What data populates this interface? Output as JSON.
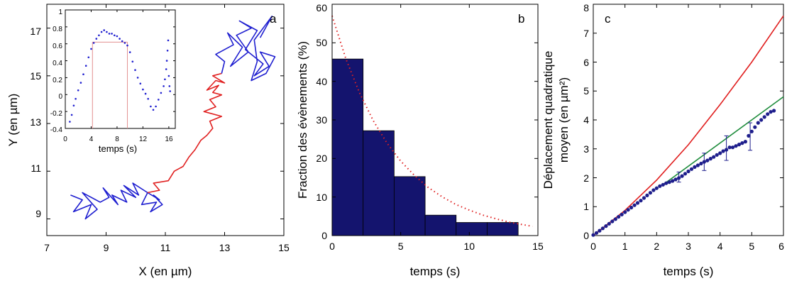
{
  "chart_data": [
    {
      "type": "line",
      "panel_label": "a",
      "xlabel": "X (en µm)",
      "ylabel": "Y (en µm)",
      "xlim": [
        7,
        15
      ],
      "ylim": [
        8.3,
        18
      ],
      "xticks": [
        "7",
        "9",
        "11",
        "13",
        "15"
      ],
      "yticks": [
        "9",
        "11",
        "13",
        "15",
        "17"
      ],
      "colors": {
        "blue": "#1f1fd0",
        "red": "#e02020"
      },
      "series": [
        {
          "color": "blue",
          "x": [
            7.8,
            8.2,
            7.9,
            8.5,
            8.3,
            8.7,
            8.2,
            8.8,
            9.1,
            8.9,
            9.4,
            9.2,
            9.7,
            9.5,
            10.0,
            9.6,
            10.1,
            9.9,
            10.4,
            10.2,
            10.7,
            10.5,
            10.9,
            10.6,
            10.8,
            10.4
          ],
          "y": [
            10.0,
            9.8,
            9.3,
            9.6,
            9.0,
            9.4,
            10.1,
            9.7,
            9.9,
            10.3,
            9.6,
            10.0,
            9.7,
            10.2,
            9.9,
            10.4,
            10.0,
            10.5,
            10.1,
            9.6,
            9.7,
            9.3,
            9.6,
            10.0,
            9.8,
            10.1
          ]
        },
        {
          "color": "red",
          "x": [
            10.4,
            10.8,
            10.6,
            11.1,
            11.3,
            11.6,
            11.8,
            12.0,
            12.2,
            12.4,
            12.6,
            12.5,
            12.9,
            12.3,
            12.7,
            12.5,
            12.9,
            12.6,
            12.8,
            12.4,
            12.7,
            13.0,
            12.6,
            12.9
          ],
          "y": [
            10.1,
            10.2,
            10.5,
            10.6,
            11.0,
            11.2,
            11.6,
            11.9,
            12.3,
            12.5,
            12.8,
            13.1,
            13.3,
            13.5,
            13.7,
            14.0,
            14.2,
            14.3,
            14.6,
            14.4,
            14.8,
            14.7,
            15.0,
            15.1
          ]
        },
        {
          "color": "blue",
          "x": [
            12.9,
            13.0,
            12.7,
            13.3,
            13.1,
            13.6,
            13.2,
            13.8,
            13.4,
            13.9,
            13.5,
            14.1,
            13.7,
            14.3,
            14.0,
            14.5,
            14.2,
            14.7,
            14.4,
            13.9,
            14.1,
            14.0,
            14.6,
            14.2
          ],
          "y": [
            15.1,
            15.6,
            15.9,
            16.3,
            16.8,
            16.2,
            15.4,
            16.0,
            16.7,
            17.0,
            17.3,
            16.9,
            16.1,
            15.5,
            15.0,
            15.4,
            16.0,
            15.8,
            15.1,
            14.8,
            15.6,
            16.5,
            17.5,
            16.6
          ]
        }
      ]
    },
    {
      "type": "scatter",
      "role": "inset",
      "xlabel": "temps (s)",
      "xlim": [
        0,
        17
      ],
      "ylim": [
        -0.4,
        1
      ],
      "xticks": [
        "0",
        "4",
        "8",
        "12",
        "16"
      ],
      "yticks": [
        "-0.4",
        "-0.2",
        "0",
        "0.2",
        "0.4",
        "0.6",
        "0.8",
        "1"
      ],
      "points_x": [
        0.7,
        1.0,
        1.3,
        1.6,
        2.0,
        2.4,
        2.8,
        3.2,
        3.6,
        4.0,
        4.4,
        4.8,
        5.2,
        5.6,
        6.0,
        6.4,
        6.8,
        7.2,
        7.6,
        8.0,
        8.4,
        8.8,
        9.2,
        9.6,
        10.0,
        10.4,
        10.8,
        11.2,
        11.6,
        12.0,
        12.4,
        12.8,
        13.2,
        13.6,
        14.0,
        14.4,
        14.8,
        15.2,
        15.4,
        15.6,
        15.7,
        15.8,
        15.9,
        16.0,
        16.1,
        16.2
      ],
      "points_y": [
        -0.32,
        -0.24,
        -0.13,
        -0.05,
        0.05,
        0.14,
        0.24,
        0.34,
        0.44,
        0.54,
        0.61,
        0.66,
        0.7,
        0.74,
        0.76,
        0.74,
        0.72,
        0.72,
        0.7,
        0.69,
        0.66,
        0.63,
        0.61,
        0.58,
        0.5,
        0.39,
        0.29,
        0.2,
        0.13,
        0.06,
        0.01,
        -0.05,
        -0.14,
        -0.18,
        -0.14,
        -0.06,
        0.02,
        0.1,
        0.18,
        0.3,
        0.4,
        0.52,
        0.64,
        0.22,
        0.1,
        0.04
      ],
      "markers": {
        "threshold_y": 0.62,
        "start_x": 4.2,
        "end_x": 9.6
      },
      "colors": {
        "points": "#1f1fd0",
        "markers": "#e39090"
      }
    },
    {
      "type": "bar",
      "panel_label": "b",
      "xlabel": "temps (s)",
      "ylabel": "Fraction des évènements (%)",
      "xlim": [
        0,
        15
      ],
      "ylim": [
        0,
        60
      ],
      "xticks": [
        "0",
        "5",
        "10",
        "15"
      ],
      "yticks": [
        "0",
        "10",
        "20",
        "30",
        "40",
        "50",
        "60"
      ],
      "bin_edges": [
        0,
        2.26,
        4.52,
        6.78,
        9.04,
        11.3,
        13.56
      ],
      "values": [
        45.8,
        27.2,
        15.3,
        5.3,
        3.4,
        3.4
      ],
      "fit": {
        "style": "dotted",
        "x": [
          0,
          1,
          2,
          3,
          4,
          5,
          6,
          7,
          8,
          9,
          10,
          11,
          12,
          13,
          14.6
        ],
        "y": [
          57.0,
          45.9,
          37.0,
          29.8,
          24.0,
          19.3,
          15.6,
          12.5,
          10.1,
          8.1,
          6.6,
          5.3,
          4.3,
          3.4,
          2.4
        ]
      },
      "colors": {
        "bars": "#14146e",
        "fit": "#e02020"
      }
    },
    {
      "type": "scatter",
      "panel_label": "c",
      "xlabel": "temps (s)",
      "ylabel_lines": [
        "Déplacement quadratique",
        "moyen (en µm²)"
      ],
      "xlim": [
        0,
        6
      ],
      "ylim": [
        0,
        8
      ],
      "xticks": [
        "0",
        "1",
        "2",
        "3",
        "4",
        "5",
        "6"
      ],
      "yticks": [
        "0",
        "1",
        "2",
        "3",
        "4",
        "5",
        "6",
        "7",
        "8"
      ],
      "points_x": [
        0.0,
        0.1,
        0.2,
        0.3,
        0.4,
        0.5,
        0.6,
        0.7,
        0.8,
        0.9,
        1.0,
        1.1,
        1.2,
        1.3,
        1.4,
        1.5,
        1.6,
        1.7,
        1.8,
        1.9,
        2.0,
        2.1,
        2.2,
        2.3,
        2.4,
        2.5,
        2.6,
        2.7,
        2.8,
        2.9,
        3.0,
        3.1,
        3.2,
        3.3,
        3.4,
        3.5,
        3.6,
        3.7,
        3.8,
        3.9,
        4.0,
        4.1,
        4.2,
        4.3,
        4.4,
        4.5,
        4.6,
        4.7,
        4.8,
        4.9,
        5.0,
        5.1,
        5.2,
        5.3,
        5.4,
        5.5,
        5.6,
        5.7
      ],
      "points_y": [
        0.02,
        0.09,
        0.17,
        0.25,
        0.33,
        0.41,
        0.49,
        0.57,
        0.65,
        0.73,
        0.81,
        0.89,
        0.97,
        1.05,
        1.13,
        1.21,
        1.3,
        1.39,
        1.48,
        1.57,
        1.64,
        1.71,
        1.76,
        1.81,
        1.85,
        1.89,
        1.94,
        1.99,
        2.06,
        2.14,
        2.22,
        2.3,
        2.37,
        2.43,
        2.49,
        2.55,
        2.6,
        2.66,
        2.72,
        2.79,
        2.85,
        2.92,
        2.97,
        3.05,
        3.05,
        3.1,
        3.15,
        3.2,
        3.25,
        3.45,
        3.6,
        3.75,
        3.9,
        4.0,
        4.1,
        4.2,
        4.28,
        4.32
      ],
      "error_bars": [
        {
          "x": 2.7,
          "y": 2.0,
          "low": 1.85,
          "high": 2.2
        },
        {
          "x": 3.5,
          "y": 2.55,
          "low": 2.25,
          "high": 2.85
        },
        {
          "x": 4.2,
          "y": 3.0,
          "low": 2.6,
          "high": 3.45
        },
        {
          "x": 4.95,
          "y": 3.4,
          "low": 2.95,
          "high": 3.9
        }
      ],
      "red_curve": {
        "x": [
          0,
          1,
          2,
          3,
          4,
          5,
          6
        ],
        "y": [
          0,
          0.87,
          1.92,
          3.14,
          4.53,
          6.0,
          7.6
        ]
      },
      "green_line": {
        "x": [
          2.2,
          6
        ],
        "y": [
          1.76,
          4.8
        ]
      },
      "colors": {
        "points": "#1e1e8c",
        "red": "#e01e1e",
        "green": "#1e8c3c"
      }
    }
  ]
}
